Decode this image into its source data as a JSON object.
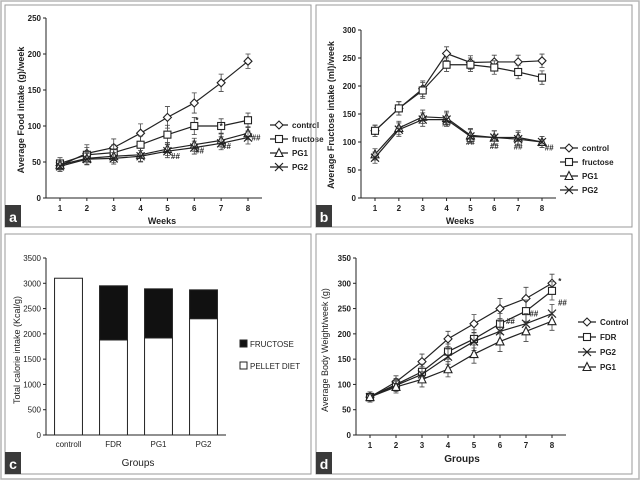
{
  "figure": {
    "panels": [
      {
        "key": "a",
        "letter": "a",
        "type": "line",
        "ylabel": "Average Food intake (g)/week",
        "xlabel": "Weeks",
        "ylim": [
          0,
          250
        ],
        "yticks": [
          0,
          50,
          100,
          150,
          200,
          250
        ],
        "x": [
          1,
          2,
          3,
          4,
          5,
          6,
          7,
          8
        ],
        "legend_placement": "right",
        "annotations": [
          {
            "text": "*",
            "x": 6.1,
            "y": 108
          },
          {
            "text": "*",
            "x": 7.0,
            "y": 100
          },
          {
            "text": "##",
            "x": 5.3,
            "y": 58
          },
          {
            "text": "##",
            "x": 6.2,
            "y": 66
          },
          {
            "text": "##",
            "x": 7.2,
            "y": 72
          },
          {
            "text": "##",
            "x": 8.3,
            "y": 84
          }
        ],
        "series": [
          {
            "name": "control",
            "marker": "diamond",
            "values": [
              45,
              62,
              70,
              90,
              112,
              132,
              160,
              190
            ],
            "errors": [
              8,
              12,
              12,
              13,
              15,
              14,
              12,
              10
            ]
          },
          {
            "name": "fructose",
            "marker": "square",
            "values": [
              48,
              60,
              63,
              74,
              88,
              100,
              100,
              108
            ],
            "errors": [
              8,
              10,
              11,
              12,
              13,
              12,
              10,
              10
            ]
          },
          {
            "name": "PG1",
            "marker": "triangle",
            "values": [
              46,
              55,
              58,
              60,
              68,
              74,
              80,
              90
            ],
            "errors": [
              7,
              8,
              9,
              9,
              9,
              9,
              9,
              9
            ]
          },
          {
            "name": "PG2",
            "marker": "x",
            "values": [
              44,
              54,
              55,
              58,
              65,
              70,
              76,
              84
            ],
            "errors": [
              7,
              8,
              8,
              8,
              9,
              9,
              9,
              9
            ]
          }
        ]
      },
      {
        "key": "b",
        "letter": "b",
        "type": "line",
        "ylabel": "Average Fructose intake (ml)/week",
        "xlabel": "Weeks",
        "ylim": [
          0,
          300
        ],
        "yticks": [
          0,
          50,
          100,
          150,
          200,
          250,
          300
        ],
        "x": [
          1,
          2,
          3,
          4,
          5,
          6,
          7,
          8
        ],
        "legend_placement": "right",
        "annotations": [
          {
            "text": "##",
            "x": 4.0,
            "y": 133
          },
          {
            "text": "##",
            "x": 5.0,
            "y": 100
          },
          {
            "text": "##",
            "x": 6.0,
            "y": 93
          },
          {
            "text": "##",
            "x": 7.0,
            "y": 92
          },
          {
            "text": "##",
            "x": 8.3,
            "y": 90
          }
        ],
        "series": [
          {
            "name": "control",
            "marker": "diamond",
            "values": [
              120,
              160,
              195,
              258,
              242,
              243,
              243,
              245
            ],
            "errors": [
              10,
              12,
              14,
              12,
              12,
              12,
              12,
              12
            ]
          },
          {
            "name": "fructose",
            "marker": "square",
            "values": [
              120,
              160,
              192,
              238,
              238,
              233,
              225,
              215
            ],
            "errors": [
              10,
              12,
              14,
              12,
              12,
              12,
              12,
              12
            ]
          },
          {
            "name": "PG1",
            "marker": "triangle",
            "values": [
              78,
              125,
              145,
              143,
              112,
              108,
              108,
              100
            ],
            "errors": [
              10,
              12,
              12,
              12,
              12,
              12,
              12,
              10
            ]
          },
          {
            "name": "PG2",
            "marker": "x",
            "values": [
              72,
              122,
              140,
              140,
              110,
              108,
              105,
              100
            ],
            "errors": [
              10,
              12,
              12,
              12,
              12,
              12,
              12,
              10
            ]
          }
        ]
      },
      {
        "key": "c",
        "letter": "c",
        "type": "bar",
        "ylabel": "Total calorie intake (Kcal/g)",
        "xlabel": "Groups",
        "ylim": [
          0,
          3500
        ],
        "yticks": [
          0,
          500,
          1000,
          1500,
          2000,
          2500,
          3000,
          3500
        ],
        "categories": [
          "controll",
          "FDR",
          "PG1",
          "PG2"
        ],
        "legend_placement": "right",
        "series": [
          {
            "name": "PELLET DIET",
            "values": [
              3100,
              1880,
              1920,
              2300
            ]
          },
          {
            "name": "FRUCTOSE",
            "values": [
              0,
              1070,
              970,
              570
            ]
          }
        ]
      },
      {
        "key": "d",
        "letter": "d",
        "type": "line",
        "ylabel": "Average Body Weight/week (g)",
        "xlabel": "Groups",
        "ylim": [
          0,
          350
        ],
        "yticks": [
          0,
          50,
          100,
          150,
          200,
          250,
          300,
          350
        ],
        "x": [
          1,
          2,
          3,
          4,
          5,
          6,
          7,
          8
        ],
        "legend_placement": "right",
        "annotations": [
          {
            "text": "*",
            "x": 8.3,
            "y": 305
          },
          {
            "text": "##",
            "x": 6.4,
            "y": 225
          },
          {
            "text": "##",
            "x": 7.3,
            "y": 240
          },
          {
            "text": "##",
            "x": 8.4,
            "y": 262
          }
        ],
        "series": [
          {
            "name": "Control",
            "marker": "diamond",
            "values": [
              75,
              105,
              145,
              190,
              220,
              250,
              270,
              300
            ],
            "errors": [
              10,
              12,
              15,
              15,
              18,
              20,
              22,
              18
            ]
          },
          {
            "name": "FDR",
            "marker": "square",
            "values": [
              75,
              100,
              125,
              165,
              190,
              220,
              245,
              285
            ],
            "errors": [
              10,
              12,
              15,
              15,
              18,
              20,
              22,
              18
            ]
          },
          {
            "name": "PG2",
            "marker": "x",
            "values": [
              75,
              98,
              120,
              155,
              185,
              205,
              220,
              240
            ],
            "errors": [
              10,
              12,
              15,
              15,
              18,
              20,
              20,
              18
            ]
          },
          {
            "name": "PG1",
            "marker": "triangle",
            "values": [
              75,
              95,
              110,
              130,
              160,
              185,
              205,
              225
            ],
            "errors": [
              10,
              12,
              15,
              15,
              18,
              20,
              20,
              18
            ]
          }
        ]
      }
    ]
  },
  "chart_data": [
    {
      "type": "line",
      "title": "",
      "xlabel": "Weeks",
      "ylabel": "Average Food intake (g)/week",
      "x": [
        1,
        2,
        3,
        4,
        5,
        6,
        7,
        8
      ],
      "ylim": [
        0,
        250
      ],
      "grid": false,
      "legend": "right",
      "series": [
        {
          "name": "control",
          "values": [
            45,
            62,
            70,
            90,
            112,
            132,
            160,
            190
          ]
        },
        {
          "name": "fructose",
          "values": [
            48,
            60,
            63,
            74,
            88,
            100,
            100,
            108
          ]
        },
        {
          "name": "PG1",
          "values": [
            46,
            55,
            58,
            60,
            68,
            74,
            80,
            90
          ]
        },
        {
          "name": "PG2",
          "values": [
            44,
            54,
            55,
            58,
            65,
            70,
            76,
            84
          ]
        }
      ]
    },
    {
      "type": "line",
      "title": "",
      "xlabel": "Weeks",
      "ylabel": "Average Fructose intake (ml)/week",
      "x": [
        1,
        2,
        3,
        4,
        5,
        6,
        7,
        8
      ],
      "ylim": [
        0,
        300
      ],
      "grid": false,
      "legend": "right",
      "series": [
        {
          "name": "control",
          "values": [
            120,
            160,
            195,
            258,
            242,
            243,
            243,
            245
          ]
        },
        {
          "name": "fructose",
          "values": [
            120,
            160,
            192,
            238,
            238,
            233,
            225,
            215
          ]
        },
        {
          "name": "PG1",
          "values": [
            78,
            125,
            145,
            143,
            112,
            108,
            108,
            100
          ]
        },
        {
          "name": "PG2",
          "values": [
            72,
            122,
            140,
            140,
            110,
            108,
            105,
            100
          ]
        }
      ]
    },
    {
      "type": "bar",
      "title": "",
      "xlabel": "Groups",
      "ylabel": "Total calorie intake (Kcal/g)",
      "categories": [
        "controll",
        "FDR",
        "PG1",
        "PG2"
      ],
      "ylim": [
        0,
        3500
      ],
      "stacked": true,
      "legend": "right",
      "series": [
        {
          "name": "PELLET DIET",
          "values": [
            3100,
            1880,
            1920,
            2300
          ]
        },
        {
          "name": "FRUCTOSE",
          "values": [
            0,
            1070,
            970,
            570
          ]
        }
      ]
    },
    {
      "type": "line",
      "title": "",
      "xlabel": "Groups",
      "ylabel": "Average Body Weight/week (g)",
      "x": [
        1,
        2,
        3,
        4,
        5,
        6,
        7,
        8
      ],
      "ylim": [
        0,
        350
      ],
      "grid": false,
      "legend": "right",
      "series": [
        {
          "name": "Control",
          "values": [
            75,
            105,
            145,
            190,
            220,
            250,
            270,
            300
          ]
        },
        {
          "name": "FDR",
          "values": [
            75,
            100,
            125,
            165,
            190,
            220,
            245,
            285
          ]
        },
        {
          "name": "PG2",
          "values": [
            75,
            98,
            120,
            155,
            185,
            205,
            220,
            240
          ]
        },
        {
          "name": "PG1",
          "values": [
            75,
            95,
            110,
            130,
            160,
            185,
            205,
            225
          ]
        }
      ]
    }
  ]
}
